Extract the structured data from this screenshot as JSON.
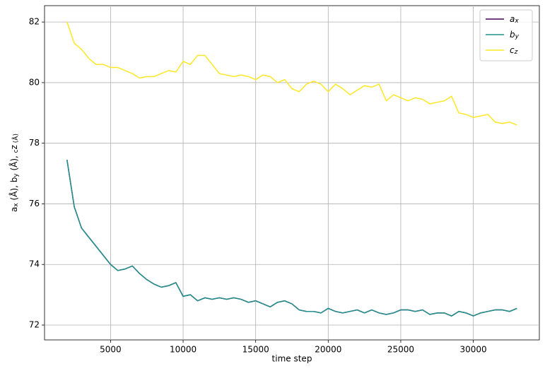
{
  "chart_data": {
    "type": "line",
    "x_label": "time step",
    "y_label": [
      "a",
      "x",
      " (Å), b",
      "y",
      " (Å), ",
      "c",
      "z",
      " (Å)"
    ],
    "x": [
      2000,
      2500,
      3000,
      3500,
      4000,
      4500,
      5000,
      5500,
      6000,
      6500,
      7000,
      7500,
      8000,
      8500,
      9000,
      9500,
      10000,
      10500,
      11000,
      11500,
      12000,
      12500,
      13000,
      13500,
      14000,
      14500,
      15000,
      15500,
      16000,
      16500,
      17000,
      17500,
      18000,
      18500,
      19000,
      19500,
      20000,
      20500,
      21000,
      21500,
      22000,
      22500,
      23000,
      23500,
      24000,
      24500,
      25000,
      25500,
      26000,
      26500,
      27000,
      27500,
      28000,
      28500,
      29000,
      29500,
      30000,
      30500,
      31000,
      31500,
      32000,
      32500,
      33000
    ],
    "series": [
      {
        "name": "ax",
        "color": "#440154",
        "values": [
          77.45,
          75.9,
          75.2,
          74.9,
          74.6,
          74.3,
          74.0,
          73.8,
          73.85,
          73.95,
          73.7,
          73.5,
          73.35,
          73.25,
          73.3,
          73.4,
          72.95,
          73.0,
          72.8,
          72.9,
          72.85,
          72.9,
          72.85,
          72.9,
          72.85,
          72.75,
          72.8,
          72.7,
          72.6,
          72.75,
          72.8,
          72.7,
          72.5,
          72.45,
          72.45,
          72.4,
          72.55,
          72.45,
          72.4,
          72.45,
          72.5,
          72.4,
          72.5,
          72.4,
          72.35,
          72.4,
          72.5,
          72.5,
          72.45,
          72.5,
          72.35,
          72.4,
          72.4,
          72.3,
          72.45,
          72.4,
          72.3,
          72.4,
          72.45,
          72.5,
          72.5,
          72.45,
          72.55
        ]
      },
      {
        "name": "by",
        "color": "#21918c",
        "values": [
          77.45,
          75.9,
          75.2,
          74.9,
          74.6,
          74.3,
          74.0,
          73.8,
          73.85,
          73.95,
          73.7,
          73.5,
          73.35,
          73.25,
          73.3,
          73.4,
          72.95,
          73.0,
          72.8,
          72.9,
          72.85,
          72.9,
          72.85,
          72.9,
          72.85,
          72.75,
          72.8,
          72.7,
          72.6,
          72.75,
          72.8,
          72.7,
          72.5,
          72.45,
          72.45,
          72.4,
          72.55,
          72.45,
          72.4,
          72.45,
          72.5,
          72.4,
          72.5,
          72.4,
          72.35,
          72.4,
          72.5,
          72.5,
          72.45,
          72.5,
          72.35,
          72.4,
          72.4,
          72.3,
          72.45,
          72.4,
          72.3,
          72.4,
          72.45,
          72.5,
          72.5,
          72.45,
          72.55
        ]
      },
      {
        "name": "cz",
        "color": "#fde725",
        "values": [
          82.0,
          81.3,
          81.1,
          80.8,
          80.6,
          80.6,
          80.5,
          80.5,
          80.4,
          80.3,
          80.15,
          80.2,
          80.2,
          80.3,
          80.4,
          80.35,
          80.7,
          80.6,
          80.9,
          80.9,
          80.6,
          80.3,
          80.25,
          80.2,
          80.25,
          80.2,
          80.1,
          80.25,
          80.2,
          80.0,
          80.1,
          79.8,
          79.7,
          79.95,
          80.05,
          79.95,
          79.7,
          79.95,
          79.8,
          79.6,
          79.75,
          79.9,
          79.85,
          79.95,
          79.4,
          79.6,
          79.5,
          79.4,
          79.5,
          79.45,
          79.3,
          79.35,
          79.4,
          79.55,
          79.0,
          78.95,
          78.85,
          78.9,
          78.95,
          78.7,
          78.65,
          78.7,
          78.6
        ]
      }
    ],
    "xlim": [
      450,
      34550
    ],
    "xticks": [
      5000,
      10000,
      15000,
      20000,
      25000,
      30000
    ],
    "ylim": [
      71.51,
      82.54
    ],
    "yticks": [
      72,
      74,
      76,
      78,
      80,
      82
    ],
    "grid": true,
    "legend": "upper-right"
  }
}
